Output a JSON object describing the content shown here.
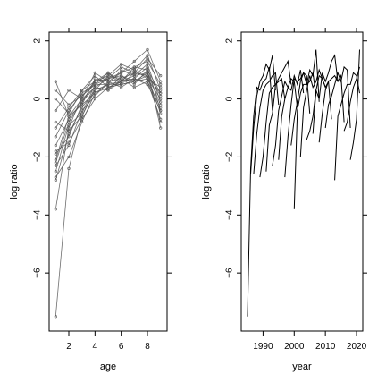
{
  "chart_data": [
    {
      "type": "line",
      "xlabel": "age",
      "ylabel": "log ratio",
      "xlim": [
        0.5,
        9.5
      ],
      "ylim": [
        -8,
        2.3
      ],
      "xticks": [
        2,
        4,
        6,
        8
      ],
      "yticks": [
        -6,
        -4,
        -2,
        0,
        2
      ],
      "grid": false,
      "legend": "none",
      "markers": true,
      "line_color": "#555555",
      "x": [
        1,
        2,
        3,
        4,
        5,
        6,
        7,
        8,
        9
      ],
      "series": [
        {
          "values": [
            -7.5,
            -2.4,
            -0.6,
            0.4,
            0.3,
            0.6,
            0.7,
            1.1,
            -0.4
          ]
        },
        {
          "values": [
            -3.8,
            -1.0,
            0.1,
            0.6,
            0.8,
            1.2,
            1.0,
            1.5,
            0.3
          ]
        },
        {
          "values": [
            -2.8,
            -1.2,
            -0.3,
            0.3,
            0.5,
            0.6,
            0.8,
            0.9,
            -0.2
          ]
        },
        {
          "values": [
            -2.7,
            -2.0,
            -0.8,
            0.2,
            0.4,
            0.5,
            0.6,
            0.7,
            0.0
          ]
        },
        {
          "values": [
            -2.5,
            -0.9,
            -0.5,
            0.5,
            0.7,
            0.9,
            1.1,
            1.3,
            0.5
          ]
        },
        {
          "values": [
            -2.3,
            -1.6,
            -0.4,
            0.1,
            0.6,
            0.4,
            0.7,
            0.6,
            -0.3
          ]
        },
        {
          "values": [
            -2.1,
            -0.6,
            0.0,
            0.4,
            0.3,
            0.8,
            0.5,
            1.0,
            0.2
          ]
        },
        {
          "values": [
            -1.9,
            -1.3,
            -0.2,
            0.7,
            0.6,
            0.7,
            0.9,
            0.8,
            -0.5
          ]
        },
        {
          "values": [
            -1.6,
            -0.7,
            -0.1,
            0.6,
            0.9,
            0.5,
            0.6,
            0.9,
            0.1
          ]
        },
        {
          "values": [
            -1.3,
            -0.4,
            0.2,
            0.5,
            0.5,
            1.0,
            0.8,
            1.2,
            -0.1
          ]
        },
        {
          "values": [
            -1.0,
            -0.3,
            0.3,
            0.8,
            0.4,
            0.6,
            1.0,
            0.7,
            0.4
          ]
        },
        {
          "values": [
            -0.8,
            -1.1,
            -0.6,
            0.3,
            0.8,
            0.7,
            0.4,
            0.6,
            -0.7
          ]
        },
        {
          "values": [
            -0.4,
            0.3,
            0.0,
            0.9,
            0.6,
            0.9,
            1.3,
            1.7,
            0.6
          ]
        },
        {
          "values": [
            0.0,
            -0.5,
            0.3,
            0.6,
            0.7,
            0.8,
            0.6,
            0.8,
            -0.8
          ]
        },
        {
          "values": [
            0.3,
            -0.2,
            0.1,
            0.5,
            0.9,
            0.6,
            1.1,
            1.0,
            -1.0
          ]
        },
        {
          "values": [
            0.6,
            -0.6,
            -0.2,
            0.2,
            0.5,
            0.5,
            0.9,
            0.8,
            0.2
          ]
        },
        {
          "values": [
            -2.2,
            -0.8,
            -0.1,
            0.4,
            0.7,
            1.1,
            0.9,
            1.4,
            0.8
          ]
        },
        {
          "values": [
            -1.8,
            -1.5,
            -0.7,
            0.0,
            0.4,
            0.6,
            0.7,
            0.5,
            -0.4
          ]
        }
      ]
    },
    {
      "type": "line",
      "xlabel": "year",
      "ylabel": "log ratio",
      "xlim": [
        1983,
        2022
      ],
      "ylim": [
        -8,
        2.3
      ],
      "xticks": [
        1990,
        2000,
        2010,
        2020
      ],
      "yticks": [
        -6,
        -4,
        -2,
        0,
        2
      ],
      "grid": false,
      "legend": "none",
      "markers": false,
      "line_color": "#000000",
      "cohorts": [
        {
          "start": 1985,
          "values": [
            -7.5,
            -2.4,
            -0.6,
            0.4,
            0.3,
            0.6,
            0.7,
            1.1,
            -0.4
          ]
        },
        {
          "start": 1986,
          "values": [
            -2.6,
            -1.0,
            0.1,
            0.6,
            0.8,
            1.2,
            1.0,
            1.5,
            0.3
          ]
        },
        {
          "start": 1987,
          "values": [
            -2.6,
            -1.2,
            -0.3,
            0.3,
            0.5,
            0.6,
            0.8,
            0.9,
            -0.2
          ]
        },
        {
          "start": 1989,
          "values": [
            -2.7,
            -2.0,
            -0.8,
            0.2,
            0.4,
            0.5,
            0.6,
            0.7,
            0.0
          ]
        },
        {
          "start": 1991,
          "values": [
            -2.5,
            -0.9,
            -0.5,
            0.5,
            0.7,
            0.9,
            1.1,
            1.3,
            0.5
          ]
        },
        {
          "start": 1993,
          "values": [
            -2.3,
            -1.6,
            -0.4,
            0.1,
            0.6,
            0.4,
            0.7,
            0.6,
            -0.3
          ]
        },
        {
          "start": 1995,
          "values": [
            -2.1,
            -0.6,
            0.0,
            0.4,
            0.3,
            0.8,
            0.5,
            1.0,
            0.2
          ]
        },
        {
          "start": 1997,
          "values": [
            -2.7,
            -1.3,
            -0.2,
            0.7,
            0.6,
            0.7,
            0.9,
            0.8,
            -0.5
          ]
        },
        {
          "start": 1999,
          "values": [
            -1.6,
            -0.7,
            -0.1,
            0.6,
            0.9,
            0.5,
            0.6,
            0.9,
            0.1
          ]
        },
        {
          "start": 2000,
          "values": [
            -3.8,
            -0.4,
            0.2,
            0.5,
            0.5,
            1.0,
            0.8,
            1.7,
            -0.1
          ]
        },
        {
          "start": 2002,
          "values": [
            -2.0,
            -0.3,
            0.3,
            0.8,
            0.4,
            0.6,
            1.0,
            0.7,
            0.4
          ]
        },
        {
          "start": 2004,
          "values": [
            -1.4,
            -1.1,
            -0.6,
            0.3,
            0.8,
            0.7,
            0.4,
            0.6,
            -0.7
          ]
        },
        {
          "start": 2006,
          "values": [
            -1.2,
            0.3,
            0.0,
            0.9,
            0.6,
            0.9,
            1.3,
            1.5,
            0.6
          ]
        },
        {
          "start": 2008,
          "values": [
            -1.5,
            -0.5,
            0.3,
            0.6,
            0.7,
            0.8,
            0.6,
            0.8,
            -0.8
          ]
        },
        {
          "start": 2010,
          "values": [
            -1.0,
            -0.2,
            0.1,
            0.5,
            0.9,
            0.6,
            1.1,
            1.0,
            -1.0
          ]
        },
        {
          "start": 2013,
          "values": [
            -2.8,
            -0.6,
            -0.2,
            0.2,
            0.5,
            0.5,
            0.9,
            0.8,
            0.2
          ]
        },
        {
          "start": 2016,
          "values": [
            -1.1,
            -0.8,
            -0.1,
            0.4,
            0.7,
            1.1
          ]
        },
        {
          "start": 2018,
          "values": [
            -2.1,
            -1.5,
            -0.7,
            1.7
          ]
        }
      ]
    }
  ]
}
